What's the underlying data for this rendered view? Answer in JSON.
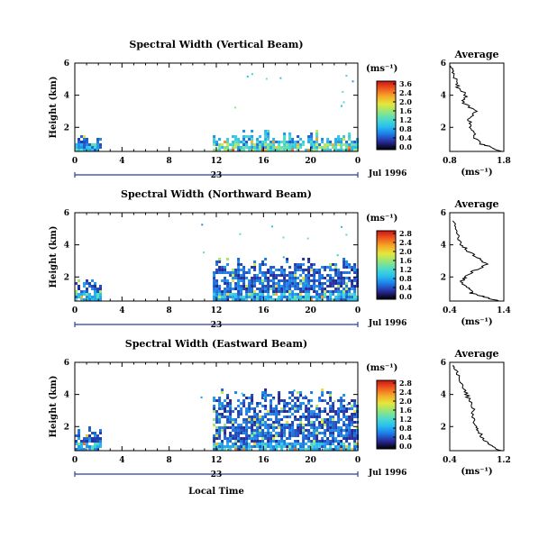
{
  "figure": {
    "xlabel": "Local Time",
    "date_label": "Jul 1996",
    "day_label": "23"
  },
  "chart_data": [
    {
      "type": "heatmap",
      "title": "Spectral Width (Vertical Beam)",
      "ylabel": "Height (km)",
      "xlabel": "Local Time",
      "x_ticks": [
        "0",
        "4",
        "8",
        "12",
        "16",
        "20",
        "0"
      ],
      "y_ticks": [
        "2",
        "4",
        "6"
      ],
      "xlim": [
        0,
        24
      ],
      "ylim": [
        0.5,
        6.0
      ],
      "colorbar": {
        "unit": "(ms⁻¹)",
        "ticks": [
          "3.6",
          "2.4",
          "2.0",
          "1.6",
          "1.2",
          "0.8",
          "0.4",
          "0.0"
        ]
      },
      "data_blocks": [
        {
          "x_range": [
            0,
            2.2
          ],
          "y_range": [
            0.5,
            1.8
          ],
          "typical": 0.8
        },
        {
          "x_range": [
            11.7,
            24
          ],
          "y_range": [
            0.5,
            1.9
          ],
          "typical": 1.2
        }
      ],
      "profile": {
        "title": "Average",
        "xlabel": "(ms⁻¹)",
        "x_ticks": [
          "0.8",
          "1.8"
        ],
        "xlim": [
          0.8,
          1.8
        ],
        "y_ticks": [
          "2",
          "4",
          "6"
        ],
        "ylim": [
          0.5,
          6.0
        ],
        "heights": [
          0.5,
          0.75,
          1.0,
          1.5,
          2.0,
          2.5,
          3.0,
          3.5,
          4.0,
          4.5,
          5.0,
          5.5,
          5.9
        ],
        "values": [
          1.75,
          1.6,
          1.35,
          1.25,
          1.2,
          1.15,
          1.3,
          1.05,
          1.1,
          0.95,
          0.9,
          0.85,
          0.82
        ]
      }
    },
    {
      "type": "heatmap",
      "title": "Spectral Width (Northward Beam)",
      "ylabel": "Height (km)",
      "xlabel": "Local Time",
      "x_ticks": [
        "0",
        "4",
        "8",
        "12",
        "16",
        "20",
        "0"
      ],
      "y_ticks": [
        "2",
        "4",
        "6"
      ],
      "xlim": [
        0,
        24
      ],
      "ylim": [
        0.5,
        6.0
      ],
      "colorbar": {
        "unit": "(ms⁻¹)",
        "ticks": [
          "2.8",
          "2.4",
          "2.0",
          "1.6",
          "1.2",
          "0.8",
          "0.4",
          "0.0"
        ]
      },
      "data_blocks": [
        {
          "x_range": [
            0,
            2.2
          ],
          "y_range": [
            0.5,
            2.0
          ],
          "typical": 0.8
        },
        {
          "x_range": [
            11.7,
            24
          ],
          "y_range": [
            0.5,
            3.3
          ],
          "typical": 0.7
        }
      ],
      "profile": {
        "title": "Average",
        "xlabel": "(ms⁻¹)",
        "x_ticks": [
          "0.4",
          "1.4"
        ],
        "xlim": [
          0.4,
          1.4
        ],
        "y_ticks": [
          "2",
          "4",
          "6"
        ],
        "ylim": [
          0.5,
          6.0
        ],
        "heights": [
          0.5,
          0.8,
          1.0,
          1.3,
          1.7,
          2.0,
          2.4,
          2.8,
          3.2,
          3.6,
          4.0,
          4.5,
          5.0,
          5.6
        ],
        "values": [
          1.3,
          1.0,
          0.8,
          0.75,
          0.6,
          0.7,
          0.85,
          1.1,
          0.9,
          0.75,
          0.6,
          0.55,
          0.5,
          0.45
        ]
      }
    },
    {
      "type": "heatmap",
      "title": "Spectral Width (Eastward Beam)",
      "ylabel": "Height (km)",
      "xlabel": "Local Time",
      "x_ticks": [
        "0",
        "4",
        "8",
        "12",
        "16",
        "20",
        "0"
      ],
      "y_ticks": [
        "2",
        "4",
        "6"
      ],
      "xlim": [
        0,
        24
      ],
      "ylim": [
        0.5,
        6.0
      ],
      "colorbar": {
        "unit": "(ms⁻¹)",
        "ticks": [
          "2.8",
          "2.4",
          "2.0",
          "1.6",
          "1.2",
          "0.8",
          "0.4",
          "0.0"
        ]
      },
      "data_blocks": [
        {
          "x_range": [
            0,
            2.2
          ],
          "y_range": [
            0.5,
            2.2
          ],
          "typical": 0.8
        },
        {
          "x_range": [
            11.7,
            24
          ],
          "y_range": [
            0.5,
            4.5
          ],
          "typical": 0.7
        }
      ],
      "profile": {
        "title": "Average",
        "xlabel": "(ms⁻¹)",
        "x_ticks": [
          "0.4",
          "1.2"
        ],
        "xlim": [
          0.4,
          1.2
        ],
        "y_ticks": [
          "2",
          "4",
          "6"
        ],
        "ylim": [
          0.5,
          6.0
        ],
        "heights": [
          0.5,
          0.8,
          1.2,
          1.6,
          2.0,
          2.5,
          3.0,
          3.5,
          4.0,
          4.5,
          5.0,
          5.5,
          5.9
        ],
        "values": [
          1.15,
          1.0,
          0.9,
          0.85,
          0.8,
          0.75,
          0.75,
          0.7,
          0.65,
          0.6,
          0.55,
          0.5,
          0.45
        ]
      }
    }
  ]
}
